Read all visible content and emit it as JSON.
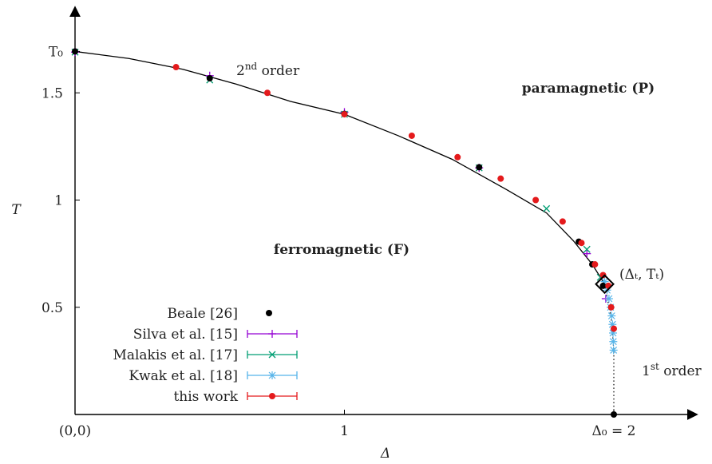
{
  "chart_data": {
    "type": "scatter",
    "title": "",
    "xlabel": "Δ",
    "ylabel": "T",
    "xlim": [
      0,
      2.22
    ],
    "ylim": [
      0,
      1.7
    ],
    "x_ticks": [
      {
        "value": 0,
        "label": "(0,0)"
      },
      {
        "value": 1,
        "label": "1"
      },
      {
        "value": 2,
        "label": "Δ₀ = 2"
      }
    ],
    "y_ticks": [
      {
        "value": 0.5,
        "label": "0.5"
      },
      {
        "value": 1,
        "label": "1"
      },
      {
        "value": 1.5,
        "label": "1.5"
      },
      {
        "value": 1.693,
        "label": "T₀"
      }
    ],
    "annotations": {
      "second_order_base": "2",
      "second_order_sup": "nd",
      "second_order_word": " order",
      "first_order_base": "1",
      "first_order_sup": "st",
      "first_order_word": " order",
      "paramagnetic": "paramagnetic (P)",
      "ferromagnetic": "ferromagnetic (F)",
      "tricritical": "(Δₜ, Tₜ)"
    },
    "tricritical_point": {
      "x": 1.966,
      "y": 0.608
    },
    "phase_boundary": [
      [
        0,
        1.693
      ],
      [
        0.2,
        1.66
      ],
      [
        0.4,
        1.61
      ],
      [
        0.6,
        1.54
      ],
      [
        0.8,
        1.46
      ],
      [
        1.0,
        1.4
      ],
      [
        1.2,
        1.3
      ],
      [
        1.4,
        1.19
      ],
      [
        1.6,
        1.05
      ],
      [
        1.75,
        0.94
      ],
      [
        1.85,
        0.81
      ],
      [
        1.92,
        0.7
      ],
      [
        1.966,
        0.608
      ]
    ],
    "first_order_line": [
      [
        1.966,
        0.608
      ],
      [
        1.99,
        0.45
      ],
      [
        2.0,
        0.3
      ],
      [
        2.0,
        0.0
      ]
    ],
    "series": [
      {
        "name": "Beale [26]",
        "color": "#000000",
        "marker": "dot",
        "points": [
          [
            0,
            1.693
          ],
          [
            0.5,
            1.568
          ],
          [
            1.0,
            1.402
          ],
          [
            1.5,
            1.153
          ],
          [
            1.87,
            0.806
          ],
          [
            1.92,
            0.7
          ],
          [
            1.96,
            0.6
          ],
          [
            2.0,
            0.0
          ]
        ]
      },
      {
        "name": "Silva et al. [15]",
        "color": "#9400d3",
        "marker": "plus",
        "points": [
          [
            0,
            1.69
          ],
          [
            0.5,
            1.58
          ],
          [
            1.0,
            1.41
          ],
          [
            1.5,
            1.15
          ],
          [
            1.9,
            0.75
          ],
          [
            1.97,
            0.54
          ]
        ]
      },
      {
        "name": "Malakis et al. [17]",
        "color": "#009e73",
        "marker": "cross",
        "points": [
          [
            0,
            1.69
          ],
          [
            0.5,
            1.56
          ],
          [
            1.0,
            1.4
          ],
          [
            1.5,
            1.15
          ],
          [
            1.75,
            0.96
          ],
          [
            1.9,
            0.77
          ],
          [
            1.95,
            0.64
          ]
        ]
      },
      {
        "name": "Kwak et al. [18]",
        "color": "#56b4e9",
        "marker": "star",
        "points": [
          [
            1.966,
            0.62
          ],
          [
            1.975,
            0.58
          ],
          [
            1.982,
            0.54
          ],
          [
            1.988,
            0.5
          ],
          [
            1.992,
            0.46
          ],
          [
            1.995,
            0.42
          ],
          [
            1.997,
            0.38
          ],
          [
            1.998,
            0.34
          ],
          [
            1.999,
            0.3
          ]
        ]
      },
      {
        "name": "this work",
        "color": "#e41a1c",
        "marker": "dot",
        "points": [
          [
            0.375,
            1.62
          ],
          [
            0.714,
            1.5
          ],
          [
            1.0,
            1.4
          ],
          [
            1.25,
            1.3
          ],
          [
            1.42,
            1.2
          ],
          [
            1.58,
            1.1
          ],
          [
            1.71,
            1.0
          ],
          [
            1.81,
            0.9
          ],
          [
            1.88,
            0.8
          ],
          [
            1.93,
            0.7
          ],
          [
            1.96,
            0.65
          ],
          [
            1.98,
            0.6
          ],
          [
            1.99,
            0.5
          ],
          [
            2.0,
            0.4
          ]
        ]
      }
    ],
    "legend_position": "bottom-left"
  }
}
